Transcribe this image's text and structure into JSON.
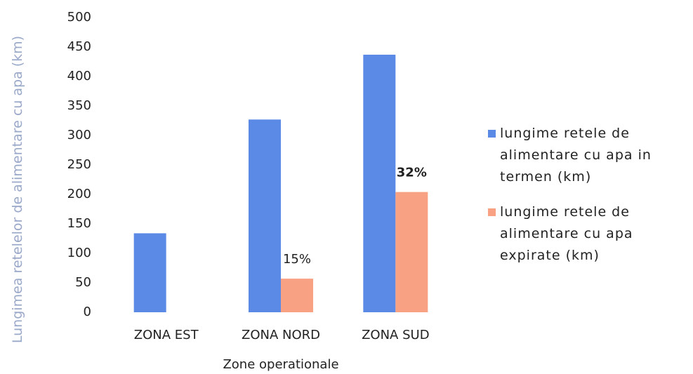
{
  "chart_data": {
    "type": "bar",
    "categories": [
      "ZONA EST",
      "ZONA NORD",
      "ZONA SUD"
    ],
    "series": [
      {
        "name": "lungime retele de alimentare cu apa in termen (km)",
        "color": "#5b8ae6",
        "values": [
          134,
          327,
          437
        ]
      },
      {
        "name": "lungime retele de alimentare cu apa expirate (km)",
        "color": "#f9a283",
        "values": [
          null,
          57,
          204
        ]
      }
    ],
    "annotations": [
      {
        "text": "15%",
        "category": "ZONA NORD"
      },
      {
        "text": "32%",
        "category": "ZONA SUD"
      }
    ],
    "ylim": [
      0,
      500
    ],
    "yticks": [
      0,
      50,
      100,
      150,
      200,
      250,
      300,
      350,
      400,
      450,
      500
    ],
    "xlabel": "Zone operationale",
    "ylabel": "Lungimea retelelor de alimentare cu apa (km)",
    "grid": false,
    "legend": "right"
  }
}
